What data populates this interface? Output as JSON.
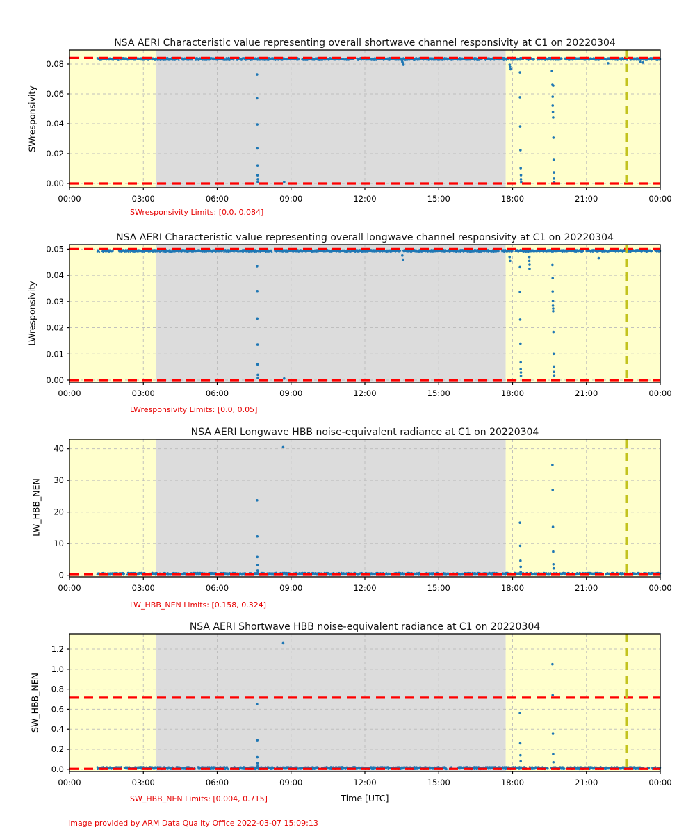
{
  "figure": {
    "xlabel": "Time [UTC]",
    "footer": "Image provided by ARM Data Quality Office 2022-03-07 15:09:13",
    "colors": {
      "point": "#1f77b4",
      "limit_line": "#ff0000",
      "vline": "#c3c31e",
      "band_yellow": "#ffffcc",
      "band_gray": "#dcdcdc",
      "grid": "#bbbbbb",
      "text_red": "#e60000",
      "frame": "#000000",
      "background": "#ffffff"
    }
  },
  "chart_data": [
    {
      "type": "scatter",
      "title": "NSA AERI Characteristic value representing overall shortwave channel responsivity at C1 on 20220304",
      "ylabel": "SWresponsivity",
      "xlim": [
        0,
        24
      ],
      "ylim": [
        -0.0028,
        0.0893
      ],
      "xticks": [
        {
          "h": 0,
          "label": "00:00"
        },
        {
          "h": 3,
          "label": "03:00"
        },
        {
          "h": 6,
          "label": "06:00"
        },
        {
          "h": 9,
          "label": "09:00"
        },
        {
          "h": 12,
          "label": "12:00"
        },
        {
          "h": 15,
          "label": "15:00"
        },
        {
          "h": 18,
          "label": "18:00"
        },
        {
          "h": 21,
          "label": "21:00"
        },
        {
          "h": 24,
          "label": "00:00"
        }
      ],
      "yticks": [
        {
          "v": 0,
          "label": "0.00"
        },
        {
          "v": 0.02,
          "label": "0.02"
        },
        {
          "v": 0.04,
          "label": "0.04"
        },
        {
          "v": 0.06,
          "label": "0.06"
        },
        {
          "v": 0.08,
          "label": "0.08"
        }
      ],
      "limits": {
        "lower": 0.0,
        "upper": 0.084,
        "label": "SWresponsivity Limits: [0.0, 0.084]"
      },
      "shading": [
        {
          "x0": 0,
          "x1": 3.53,
          "color": "yellow"
        },
        {
          "x0": 3.53,
          "x1": 17.72,
          "color": "gray"
        },
        {
          "x0": 17.72,
          "x1": 24,
          "color": "yellow"
        }
      ],
      "vline_x": 22.65,
      "baseline": {
        "y": 0.0833,
        "x_start": 1.13,
        "x_end": 24
      },
      "outliers": [
        [
          7.62,
          0.073
        ],
        [
          7.62,
          0.057
        ],
        [
          7.63,
          0.0395
        ],
        [
          7.63,
          0.0235
        ],
        [
          7.64,
          0.012
        ],
        [
          7.64,
          0.0055
        ],
        [
          7.65,
          0.0028
        ],
        [
          7.65,
          0.001
        ],
        [
          8.72,
          0.001
        ],
        [
          13.52,
          0.0815
        ],
        [
          13.55,
          0.0805
        ],
        [
          13.57,
          0.0795
        ],
        [
          17.88,
          0.0795
        ],
        [
          17.9,
          0.078
        ],
        [
          17.92,
          0.0765
        ],
        [
          18.3,
          0.0744
        ],
        [
          18.3,
          0.0577
        ],
        [
          18.31,
          0.0381
        ],
        [
          18.32,
          0.0223
        ],
        [
          18.33,
          0.0102
        ],
        [
          18.34,
          0.0056
        ],
        [
          18.34,
          0.0028
        ],
        [
          18.35,
          0.0009
        ],
        [
          19.6,
          0.0753
        ],
        [
          19.62,
          0.066
        ],
        [
          19.65,
          0.0655
        ],
        [
          19.63,
          0.0581
        ],
        [
          19.63,
          0.0521
        ],
        [
          19.64,
          0.0479
        ],
        [
          19.65,
          0.0442
        ],
        [
          19.66,
          0.0307
        ],
        [
          19.67,
          0.0158
        ],
        [
          19.68,
          0.0074
        ],
        [
          19.68,
          0.0033
        ],
        [
          19.69,
          0.0009
        ],
        [
          21.88,
          0.0805
        ],
        [
          23.2,
          0.0815
        ],
        [
          23.3,
          0.081
        ]
      ]
    },
    {
      "type": "scatter",
      "title": "NSA AERI Characteristic value representing overall longwave channel responsivity at C1 on 20220304",
      "ylabel": "LWresponsivity",
      "xlim": [
        0,
        24
      ],
      "ylim": [
        -0.0008,
        0.0517
      ],
      "xticks": [
        {
          "h": 0,
          "label": "00:00"
        },
        {
          "h": 3,
          "label": "03:00"
        },
        {
          "h": 6,
          "label": "06:00"
        },
        {
          "h": 9,
          "label": "09:00"
        },
        {
          "h": 12,
          "label": "12:00"
        },
        {
          "h": 15,
          "label": "15:00"
        },
        {
          "h": 18,
          "label": "18:00"
        },
        {
          "h": 21,
          "label": "21:00"
        },
        {
          "h": 24,
          "label": "00:00"
        }
      ],
      "yticks": [
        {
          "v": 0,
          "label": "0.00"
        },
        {
          "v": 0.01,
          "label": "0.01"
        },
        {
          "v": 0.02,
          "label": "0.02"
        },
        {
          "v": 0.03,
          "label": "0.03"
        },
        {
          "v": 0.04,
          "label": "0.04"
        },
        {
          "v": 0.05,
          "label": "0.05"
        }
      ],
      "limits": {
        "lower": 0.0,
        "upper": 0.05,
        "label": "LWresponsivity Limits: [0.0, 0.05]"
      },
      "shading": [
        {
          "x0": 0,
          "x1": 3.53,
          "color": "yellow"
        },
        {
          "x0": 3.53,
          "x1": 17.72,
          "color": "gray"
        },
        {
          "x0": 17.72,
          "x1": 24,
          "color": "yellow"
        }
      ],
      "vline_x": 22.65,
      "baseline": {
        "y": 0.0493,
        "x_start": 1.13,
        "x_end": 24
      },
      "outliers": [
        [
          7.62,
          0.0435
        ],
        [
          7.63,
          0.034
        ],
        [
          7.63,
          0.0235
        ],
        [
          7.64,
          0.0135
        ],
        [
          7.64,
          0.006
        ],
        [
          7.65,
          0.002
        ],
        [
          7.65,
          0.0008
        ],
        [
          8.72,
          0.0006
        ],
        [
          13.52,
          0.0475
        ],
        [
          13.55,
          0.046
        ],
        [
          17.88,
          0.047
        ],
        [
          17.9,
          0.0455
        ],
        [
          18.3,
          0.0431
        ],
        [
          18.3,
          0.0337
        ],
        [
          18.31,
          0.0231
        ],
        [
          18.32,
          0.0139
        ],
        [
          18.33,
          0.0068
        ],
        [
          18.33,
          0.0042
        ],
        [
          18.34,
          0.0029
        ],
        [
          18.34,
          0.0016
        ],
        [
          18.68,
          0.047
        ],
        [
          18.68,
          0.0455
        ],
        [
          18.69,
          0.044
        ],
        [
          18.69,
          0.0425
        ],
        [
          19.62,
          0.0439
        ],
        [
          19.63,
          0.0389
        ],
        [
          19.63,
          0.0339
        ],
        [
          19.64,
          0.0302
        ],
        [
          19.64,
          0.0284
        ],
        [
          19.65,
          0.0273
        ],
        [
          19.65,
          0.0263
        ],
        [
          19.66,
          0.0184
        ],
        [
          19.67,
          0.01
        ],
        [
          19.68,
          0.0052
        ],
        [
          19.68,
          0.0031
        ],
        [
          19.69,
          0.0018
        ],
        [
          21.5,
          0.0465
        ]
      ]
    },
    {
      "type": "scatter",
      "title": "NSA AERI Longwave HBB noise-equivalent radiance at C1 on 20220304",
      "ylabel": "LW_HBB_NEN",
      "xlim": [
        0,
        24
      ],
      "ylim": [
        -0.5,
        43.0
      ],
      "xticks": [
        {
          "h": 0,
          "label": "00:00"
        },
        {
          "h": 3,
          "label": "03:00"
        },
        {
          "h": 6,
          "label": "06:00"
        },
        {
          "h": 9,
          "label": "09:00"
        },
        {
          "h": 12,
          "label": "12:00"
        },
        {
          "h": 15,
          "label": "15:00"
        },
        {
          "h": 18,
          "label": "18:00"
        },
        {
          "h": 21,
          "label": "21:00"
        },
        {
          "h": 24,
          "label": "00:00"
        }
      ],
      "yticks": [
        {
          "v": 0,
          "label": "0"
        },
        {
          "v": 10,
          "label": "10"
        },
        {
          "v": 20,
          "label": "20"
        },
        {
          "v": 30,
          "label": "30"
        },
        {
          "v": 40,
          "label": "40"
        }
      ],
      "limits": {
        "lower": 0.158,
        "upper": 0.324,
        "label": "LW_HBB_NEN Limits: [0.158, 0.324]"
      },
      "shading": [
        {
          "x0": 0,
          "x1": 3.53,
          "color": "yellow"
        },
        {
          "x0": 3.53,
          "x1": 17.72,
          "color": "gray"
        },
        {
          "x0": 17.72,
          "x1": 24,
          "color": "yellow"
        }
      ],
      "vline_x": 22.65,
      "baseline": {
        "y": 0.45,
        "x_start": 1.13,
        "x_end": 24
      },
      "outliers": [
        [
          7.62,
          23.7
        ],
        [
          7.63,
          12.3
        ],
        [
          7.63,
          5.8
        ],
        [
          7.64,
          3.2
        ],
        [
          7.64,
          1.5
        ],
        [
          7.65,
          0.9
        ],
        [
          8.68,
          40.5
        ],
        [
          18.3,
          16.6
        ],
        [
          18.31,
          9.3
        ],
        [
          18.32,
          4.6
        ],
        [
          18.33,
          2.7
        ],
        [
          18.33,
          1.1
        ],
        [
          19.62,
          34.9
        ],
        [
          19.63,
          27.0
        ],
        [
          19.64,
          15.3
        ],
        [
          19.65,
          7.5
        ],
        [
          19.66,
          3.5
        ],
        [
          19.67,
          2.2
        ]
      ]
    },
    {
      "type": "scatter",
      "title": "NSA AERI Shortwave HBB noise-equivalent radiance at C1 on 20220304",
      "ylabel": "SW_HBB_NEN",
      "xlim": [
        0,
        24
      ],
      "ylim": [
        -0.022,
        1.353
      ],
      "xticks": [
        {
          "h": 0,
          "label": "00:00"
        },
        {
          "h": 3,
          "label": "03:00"
        },
        {
          "h": 6,
          "label": "06:00"
        },
        {
          "h": 9,
          "label": "09:00"
        },
        {
          "h": 12,
          "label": "12:00"
        },
        {
          "h": 15,
          "label": "15:00"
        },
        {
          "h": 18,
          "label": "18:00"
        },
        {
          "h": 21,
          "label": "21:00"
        },
        {
          "h": 24,
          "label": "00:00"
        }
      ],
      "yticks": [
        {
          "v": 0,
          "label": "0.0"
        },
        {
          "v": 0.2,
          "label": "0.2"
        },
        {
          "v": 0.4,
          "label": "0.4"
        },
        {
          "v": 0.6,
          "label": "0.6"
        },
        {
          "v": 0.8,
          "label": "0.8"
        },
        {
          "v": 1.0,
          "label": "1.0"
        },
        {
          "v": 1.2,
          "label": "1.2"
        }
      ],
      "limits": {
        "lower": 0.004,
        "upper": 0.715,
        "label": "SW_HBB_NEN Limits: [0.004, 0.715]"
      },
      "shading": [
        {
          "x0": 0,
          "x1": 3.53,
          "color": "yellow"
        },
        {
          "x0": 3.53,
          "x1": 17.72,
          "color": "gray"
        },
        {
          "x0": 17.72,
          "x1": 24,
          "color": "yellow"
        }
      ],
      "vline_x": 22.65,
      "baseline": {
        "y": 0.012,
        "x_start": 1.13,
        "x_end": 24
      },
      "outliers": [
        [
          7.62,
          0.65
        ],
        [
          7.63,
          0.29
        ],
        [
          7.63,
          0.12
        ],
        [
          7.64,
          0.06
        ],
        [
          7.64,
          0.03
        ],
        [
          8.68,
          1.26
        ],
        [
          18.3,
          0.56
        ],
        [
          18.31,
          0.26
        ],
        [
          18.32,
          0.14
        ],
        [
          18.33,
          0.08
        ],
        [
          19.62,
          1.05
        ],
        [
          19.63,
          0.74
        ],
        [
          19.64,
          0.36
        ],
        [
          19.65,
          0.15
        ],
        [
          19.66,
          0.07
        ]
      ]
    }
  ]
}
